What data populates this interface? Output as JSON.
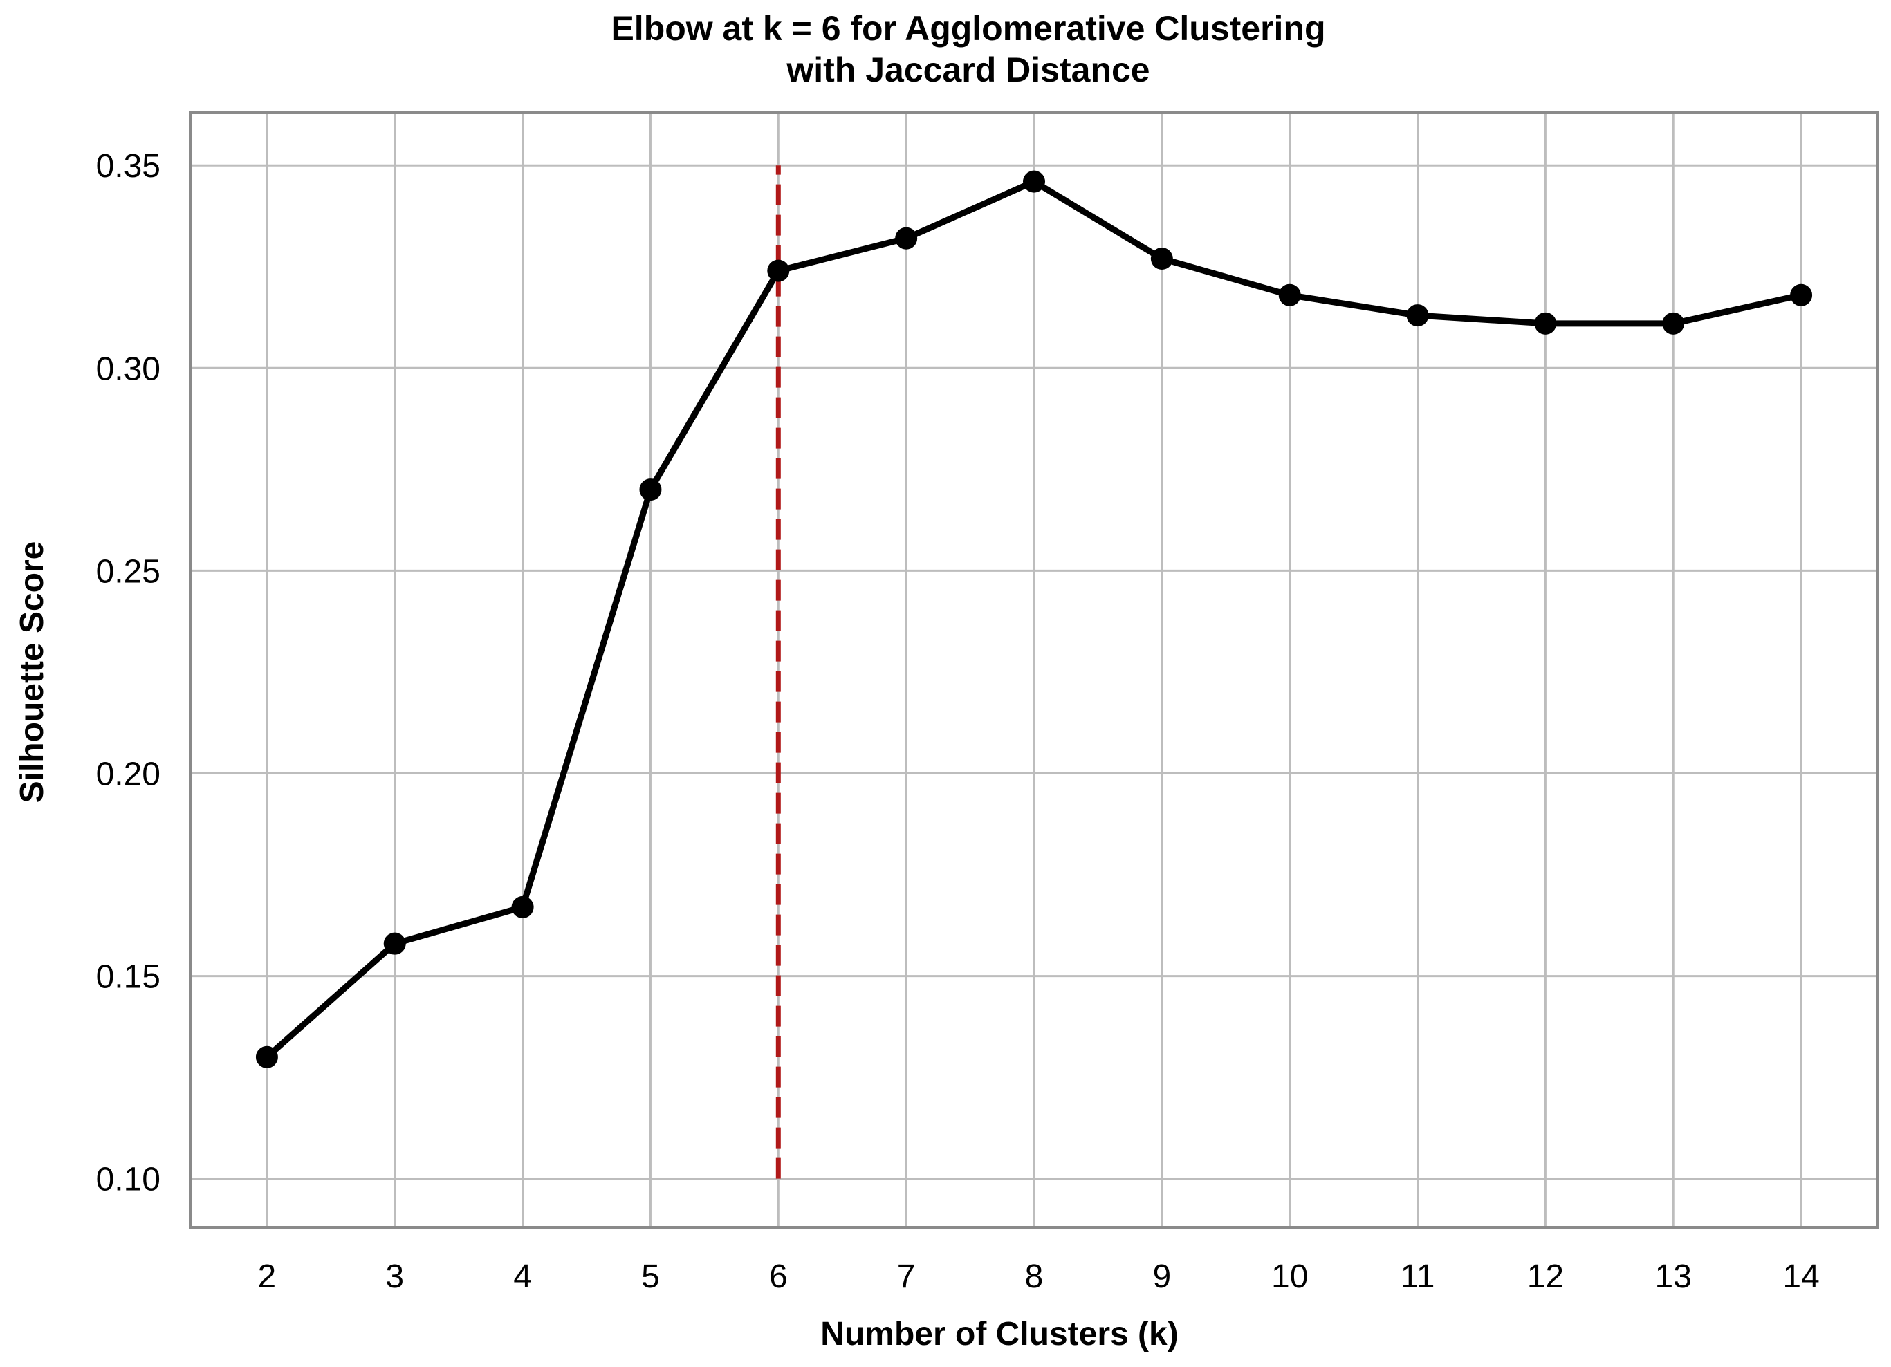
{
  "chart_data": {
    "type": "line",
    "title": "Elbow at k = 6 for Agglomerative Clustering",
    "subtitle": "with Jaccard Distance",
    "xlabel": "Number of Clusters (k)",
    "ylabel": "Silhouette Score",
    "x": [
      2,
      3,
      4,
      5,
      6,
      7,
      8,
      9,
      10,
      11,
      12,
      13,
      14
    ],
    "series": [
      {
        "values": [
          0.13,
          0.158,
          0.167,
          0.27,
          0.324,
          0.332,
          0.346,
          0.327,
          0.318,
          0.313,
          0.311,
          0.311,
          0.318
        ],
        "color": "#000000",
        "marker": "circle"
      }
    ],
    "xticks": [
      "2",
      "3",
      "4",
      "5",
      "6",
      "7",
      "8",
      "9",
      "10",
      "11",
      "12",
      "13",
      "14"
    ],
    "yticks": [
      "0.10",
      "0.15",
      "0.20",
      "0.25",
      "0.30",
      "0.35"
    ],
    "ytick_values": [
      0.1,
      0.15,
      0.2,
      0.25,
      0.3,
      0.35
    ],
    "xlim": [
      1.4,
      14.6
    ],
    "ylim": [
      0.088,
      0.363
    ],
    "grid": true,
    "elbow": {
      "x": 6,
      "y_range": [
        0.1,
        0.35
      ],
      "color": "#b01818",
      "style": "dashed"
    },
    "colors": {
      "grid": "#bdbdbd",
      "frame": "#8a8a8a",
      "line": "#000000"
    }
  }
}
